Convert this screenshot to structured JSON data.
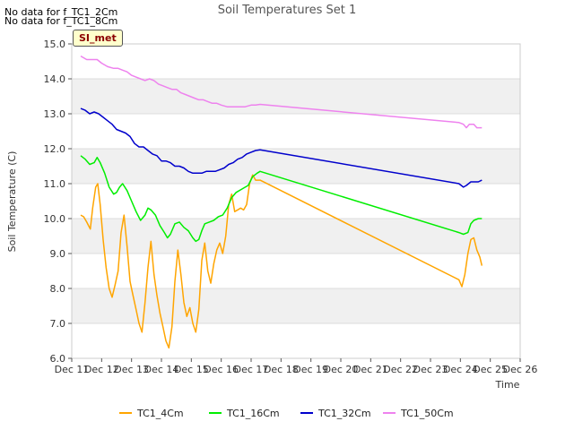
{
  "no_data_messages": [
    "No data for f_TC1_2Cm",
    "No data for f_TC1_8Cm"
  ],
  "badge": "SI_met",
  "chart_data": {
    "type": "line",
    "title": "Soil Temperatures Set 1",
    "xlabel": "Time",
    "ylabel": "Soil Temperature (C)",
    "xlim": [
      11,
      26
    ],
    "ylim": [
      6.0,
      15.0
    ],
    "x_ticks": [
      "Dec 11",
      "Dec 12",
      "Dec 13",
      "Dec 14",
      "Dec 15",
      "Dec 16",
      "Dec 17",
      "Dec 18",
      "Dec 19",
      "Dec 20",
      "Dec 21",
      "Dec 22",
      "Dec 23",
      "Dec 24",
      "Dec 25",
      "Dec 26"
    ],
    "y_ticks": [
      "6.0",
      "7.0",
      "8.0",
      "9.0",
      "10.0",
      "11.0",
      "12.0",
      "13.0",
      "14.0",
      "15.0"
    ],
    "legend_position": "bottom",
    "series": [
      {
        "name": "TC1_4Cm",
        "color": "#ffa500",
        "points": [
          [
            11.3,
            10.1
          ],
          [
            11.4,
            10.05
          ],
          [
            11.5,
            9.9
          ],
          [
            11.62,
            9.7
          ],
          [
            11.7,
            10.3
          ],
          [
            11.8,
            10.9
          ],
          [
            11.87,
            11.0
          ],
          [
            11.95,
            10.4
          ],
          [
            12.05,
            9.4
          ],
          [
            12.15,
            8.6
          ],
          [
            12.25,
            8.0
          ],
          [
            12.35,
            7.75
          ],
          [
            12.45,
            8.1
          ],
          [
            12.55,
            8.5
          ],
          [
            12.65,
            9.6
          ],
          [
            12.75,
            10.1
          ],
          [
            12.85,
            9.2
          ],
          [
            12.95,
            8.2
          ],
          [
            13.05,
            7.8
          ],
          [
            13.15,
            7.4
          ],
          [
            13.25,
            7.0
          ],
          [
            13.35,
            6.75
          ],
          [
            13.45,
            7.6
          ],
          [
            13.55,
            8.6
          ],
          [
            13.65,
            9.35
          ],
          [
            13.75,
            8.4
          ],
          [
            13.85,
            7.8
          ],
          [
            13.95,
            7.3
          ],
          [
            14.05,
            6.9
          ],
          [
            14.15,
            6.5
          ],
          [
            14.25,
            6.3
          ],
          [
            14.35,
            6.9
          ],
          [
            14.45,
            8.2
          ],
          [
            14.55,
            9.1
          ],
          [
            14.65,
            8.4
          ],
          [
            14.75,
            7.6
          ],
          [
            14.85,
            7.2
          ],
          [
            14.95,
            7.45
          ],
          [
            15.05,
            7.0
          ],
          [
            15.15,
            6.75
          ],
          [
            15.25,
            7.4
          ],
          [
            15.35,
            8.8
          ],
          [
            15.45,
            9.3
          ],
          [
            15.55,
            8.5
          ],
          [
            15.65,
            8.15
          ],
          [
            15.75,
            8.7
          ],
          [
            15.85,
            9.1
          ],
          [
            15.95,
            9.3
          ],
          [
            16.05,
            9.0
          ],
          [
            16.15,
            9.5
          ],
          [
            16.25,
            10.4
          ],
          [
            16.35,
            10.7
          ],
          [
            16.45,
            10.2
          ],
          [
            16.55,
            10.25
          ],
          [
            16.65,
            10.3
          ],
          [
            16.75,
            10.25
          ],
          [
            16.85,
            10.4
          ],
          [
            16.95,
            11.0
          ],
          [
            17.05,
            11.25
          ],
          [
            17.15,
            11.1
          ],
          [
            17.3,
            11.1
          ],
          [
            23.95,
            8.25
          ],
          [
            24.05,
            8.05
          ],
          [
            24.15,
            8.4
          ],
          [
            24.25,
            9.0
          ],
          [
            24.35,
            9.4
          ],
          [
            24.45,
            9.45
          ],
          [
            24.55,
            9.1
          ],
          [
            24.65,
            8.9
          ],
          [
            24.72,
            8.65
          ]
        ]
      },
      {
        "name": "TC1_16Cm",
        "color": "#00ee00",
        "points": [
          [
            11.3,
            11.8
          ],
          [
            11.45,
            11.7
          ],
          [
            11.6,
            11.55
          ],
          [
            11.75,
            11.6
          ],
          [
            11.85,
            11.75
          ],
          [
            11.95,
            11.6
          ],
          [
            12.1,
            11.3
          ],
          [
            12.25,
            10.9
          ],
          [
            12.4,
            10.7
          ],
          [
            12.5,
            10.75
          ],
          [
            12.6,
            10.9
          ],
          [
            12.7,
            11.0
          ],
          [
            12.85,
            10.8
          ],
          [
            13.0,
            10.5
          ],
          [
            13.15,
            10.2
          ],
          [
            13.3,
            9.95
          ],
          [
            13.45,
            10.1
          ],
          [
            13.55,
            10.3
          ],
          [
            13.65,
            10.25
          ],
          [
            13.8,
            10.1
          ],
          [
            13.95,
            9.8
          ],
          [
            14.1,
            9.6
          ],
          [
            14.2,
            9.45
          ],
          [
            14.3,
            9.55
          ],
          [
            14.45,
            9.85
          ],
          [
            14.6,
            9.9
          ],
          [
            14.75,
            9.75
          ],
          [
            14.9,
            9.65
          ],
          [
            15.05,
            9.45
          ],
          [
            15.15,
            9.35
          ],
          [
            15.25,
            9.4
          ],
          [
            15.35,
            9.65
          ],
          [
            15.45,
            9.85
          ],
          [
            15.6,
            9.9
          ],
          [
            15.75,
            9.95
          ],
          [
            15.9,
            10.05
          ],
          [
            16.05,
            10.1
          ],
          [
            16.2,
            10.3
          ],
          [
            16.35,
            10.6
          ],
          [
            16.5,
            10.75
          ],
          [
            16.7,
            10.85
          ],
          [
            16.9,
            10.95
          ],
          [
            17.05,
            11.2
          ],
          [
            17.2,
            11.3
          ],
          [
            17.3,
            11.35
          ],
          [
            23.95,
            9.6
          ],
          [
            24.1,
            9.55
          ],
          [
            24.25,
            9.6
          ],
          [
            24.35,
            9.85
          ],
          [
            24.45,
            9.95
          ],
          [
            24.6,
            10.0
          ],
          [
            24.72,
            10.0
          ]
        ]
      },
      {
        "name": "TC1_32Cm",
        "color": "#0000cc",
        "points": [
          [
            11.3,
            13.15
          ],
          [
            11.45,
            13.1
          ],
          [
            11.6,
            13.0
          ],
          [
            11.75,
            13.05
          ],
          [
            11.9,
            13.0
          ],
          [
            12.05,
            12.9
          ],
          [
            12.2,
            12.8
          ],
          [
            12.35,
            12.7
          ],
          [
            12.5,
            12.55
          ],
          [
            12.65,
            12.5
          ],
          [
            12.8,
            12.45
          ],
          [
            12.95,
            12.35
          ],
          [
            13.1,
            12.15
          ],
          [
            13.25,
            12.05
          ],
          [
            13.4,
            12.05
          ],
          [
            13.55,
            11.95
          ],
          [
            13.7,
            11.85
          ],
          [
            13.85,
            11.8
          ],
          [
            14.0,
            11.65
          ],
          [
            14.15,
            11.65
          ],
          [
            14.3,
            11.6
          ],
          [
            14.45,
            11.5
          ],
          [
            14.6,
            11.5
          ],
          [
            14.75,
            11.45
          ],
          [
            14.9,
            11.35
          ],
          [
            15.05,
            11.3
          ],
          [
            15.2,
            11.3
          ],
          [
            15.35,
            11.3
          ],
          [
            15.5,
            11.35
          ],
          [
            15.65,
            11.35
          ],
          [
            15.8,
            11.35
          ],
          [
            15.95,
            11.4
          ],
          [
            16.1,
            11.45
          ],
          [
            16.25,
            11.55
          ],
          [
            16.4,
            11.6
          ],
          [
            16.55,
            11.7
          ],
          [
            16.7,
            11.75
          ],
          [
            16.85,
            11.85
          ],
          [
            17.0,
            11.9
          ],
          [
            17.15,
            11.95
          ],
          [
            17.3,
            11.97
          ],
          [
            23.95,
            11.0
          ],
          [
            24.1,
            10.9
          ],
          [
            24.2,
            10.95
          ],
          [
            24.35,
            11.05
          ],
          [
            24.5,
            11.05
          ],
          [
            24.6,
            11.05
          ],
          [
            24.72,
            11.1
          ]
        ]
      },
      {
        "name": "TC1_50Cm",
        "color": "#ee82ee",
        "points": [
          [
            11.3,
            14.65
          ],
          [
            11.5,
            14.55
          ],
          [
            11.7,
            14.55
          ],
          [
            11.85,
            14.55
          ],
          [
            12.0,
            14.45
          ],
          [
            12.2,
            14.35
          ],
          [
            12.4,
            14.3
          ],
          [
            12.55,
            14.3
          ],
          [
            12.7,
            14.25
          ],
          [
            12.85,
            14.2
          ],
          [
            13.0,
            14.1
          ],
          [
            13.15,
            14.05
          ],
          [
            13.3,
            14.0
          ],
          [
            13.45,
            13.95
          ],
          [
            13.6,
            14.0
          ],
          [
            13.75,
            13.95
          ],
          [
            13.9,
            13.85
          ],
          [
            14.05,
            13.8
          ],
          [
            14.2,
            13.75
          ],
          [
            14.35,
            13.7
          ],
          [
            14.5,
            13.7
          ],
          [
            14.65,
            13.6
          ],
          [
            14.8,
            13.55
          ],
          [
            14.95,
            13.5
          ],
          [
            15.1,
            13.45
          ],
          [
            15.25,
            13.4
          ],
          [
            15.4,
            13.4
          ],
          [
            15.55,
            13.35
          ],
          [
            15.7,
            13.3
          ],
          [
            15.85,
            13.3
          ],
          [
            16.0,
            13.25
          ],
          [
            16.2,
            13.2
          ],
          [
            16.4,
            13.2
          ],
          [
            16.6,
            13.2
          ],
          [
            16.8,
            13.2
          ],
          [
            17.0,
            13.25
          ],
          [
            17.15,
            13.25
          ],
          [
            17.3,
            13.27
          ],
          [
            23.95,
            12.75
          ],
          [
            24.1,
            12.7
          ],
          [
            24.2,
            12.6
          ],
          [
            24.3,
            12.7
          ],
          [
            24.45,
            12.7
          ],
          [
            24.55,
            12.6
          ],
          [
            24.72,
            12.6
          ]
        ]
      }
    ]
  }
}
